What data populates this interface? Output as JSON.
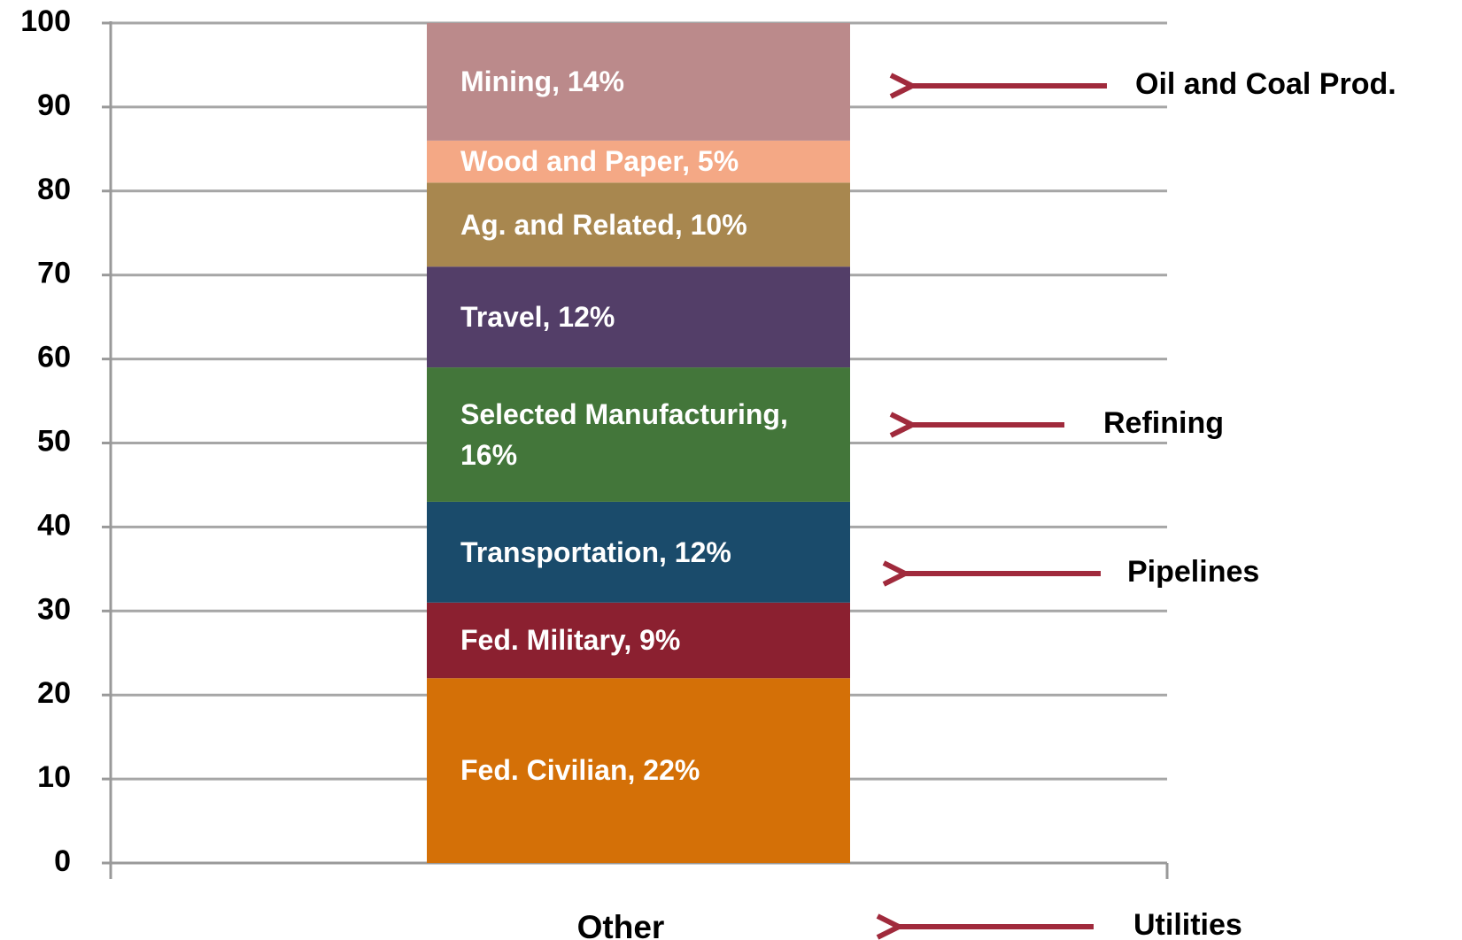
{
  "chart_data": {
    "type": "stacked-bar",
    "categories": [
      "Other"
    ],
    "series": [
      {
        "name": "Fed. Civilian, 22%",
        "color": "#d47007",
        "values": [
          22
        ]
      },
      {
        "name": "Fed. Military, 9%",
        "color": "#8b2030",
        "values": [
          9
        ]
      },
      {
        "name": "Transportation, 12%",
        "color": "#1a4b6b",
        "values": [
          12
        ]
      },
      {
        "name": "Selected Manufacturing, 16%",
        "color": "#43763a",
        "values": [
          16
        ]
      },
      {
        "name": "Travel, 12%",
        "color": "#533e68",
        "values": [
          12
        ]
      },
      {
        "name": "Ag. and Related, 10%",
        "color": "#a8874f",
        "values": [
          10
        ]
      },
      {
        "name": "Wood and Paper, 5%",
        "color": "#f4a885",
        "values": [
          5
        ]
      },
      {
        "name": "Mining, 14%",
        "color": "#bb8a8b",
        "values": [
          14
        ]
      }
    ],
    "ylim": [
      0,
      100
    ],
    "yticks": [
      0,
      10,
      20,
      30,
      40,
      50,
      60,
      70,
      80,
      90,
      100
    ],
    "grid": true,
    "annotations": [
      "Oil and Coal Prod.",
      "Refining",
      "Pipelines",
      "Utilities"
    ]
  }
}
